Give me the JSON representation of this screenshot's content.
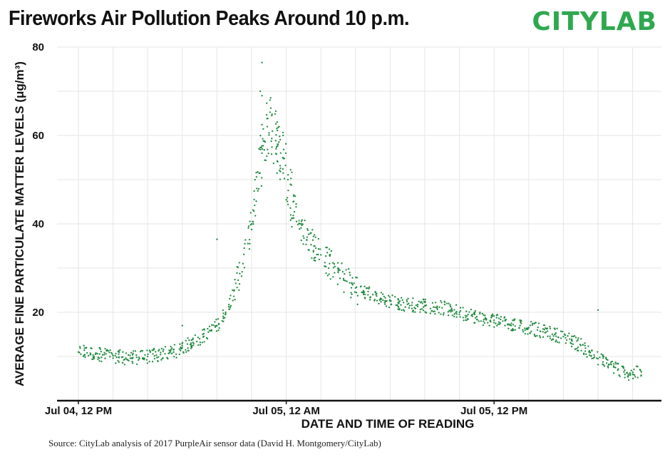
{
  "header": {
    "title": "Fireworks Air Pollution Peaks Around 10 p.m.",
    "brand": "CITYLAB"
  },
  "footer": {
    "source": "Source: CityLab analysis of 2017 PurpleAir sensor data (David H. Montgomery/CityLab)"
  },
  "colors": {
    "points": "#1f8a3c",
    "brand": "#2ea84f",
    "grid": "#e6e6e6",
    "axis": "#111111"
  },
  "chart_data": {
    "type": "scatter",
    "title": "Fireworks Air Pollution Peaks Around 10 p.m.",
    "xlabel": "DATE AND TIME OF READING",
    "ylabel": "AVERAGE FINE PARTICULATE MATTER LEVELS (μg/m³)",
    "x_units": "hours after Jul 04, 12 PM",
    "x_ticks": [
      {
        "x": 0,
        "label": "Jul 04, 12 PM"
      },
      {
        "x": 12,
        "label": "Jul 05, 12 AM"
      },
      {
        "x": 24,
        "label": "Jul 05, 12 PM"
      }
    ],
    "ylim": [
      0,
      80
    ],
    "y_ticks": [
      20,
      40,
      60,
      80
    ],
    "xlim": [
      -2,
      33
    ],
    "grid": true,
    "series": [
      {
        "name": "",
        "points": [
          [
            0.0,
            11.0
          ],
          [
            0.5,
            10.8
          ],
          [
            1.0,
            10.6
          ],
          [
            1.5,
            10.4
          ],
          [
            2.0,
            10.2
          ],
          [
            2.5,
            9.8
          ],
          [
            3.0,
            9.6
          ],
          [
            3.5,
            9.8
          ],
          [
            4.0,
            10.0
          ],
          [
            4.5,
            10.3
          ],
          [
            5.0,
            10.6
          ],
          [
            5.5,
            11.0
          ],
          [
            6.0,
            12.0
          ],
          [
            6.5,
            13.0
          ],
          [
            7.0,
            14.0
          ],
          [
            7.5,
            15.5
          ],
          [
            8.0,
            17.0
          ],
          [
            8.5,
            20.0
          ],
          [
            9.0,
            25.0
          ],
          [
            9.5,
            31.0
          ],
          [
            10.0,
            40.0
          ],
          [
            10.3,
            48.0
          ],
          [
            10.6,
            56.0
          ],
          [
            10.9,
            62.0
          ],
          [
            11.2,
            61.0
          ],
          [
            11.5,
            58.0
          ],
          [
            11.8,
            55.0
          ],
          [
            12.1,
            50.0
          ],
          [
            12.4,
            45.0
          ],
          [
            12.8,
            40.0
          ],
          [
            13.2,
            37.0
          ],
          [
            13.6,
            35.0
          ],
          [
            14.0,
            33.0
          ],
          [
            14.5,
            31.0
          ],
          [
            15.0,
            29.0
          ],
          [
            15.5,
            27.0
          ],
          [
            16.0,
            25.5
          ],
          [
            16.5,
            24.5
          ],
          [
            17.0,
            24.0
          ],
          [
            17.5,
            23.0
          ],
          [
            18.0,
            22.5
          ],
          [
            18.5,
            22.0
          ],
          [
            19.0,
            21.8
          ],
          [
            19.5,
            21.6
          ],
          [
            20.0,
            21.5
          ],
          [
            20.5,
            21.2
          ],
          [
            21.0,
            21.0
          ],
          [
            21.5,
            20.5
          ],
          [
            22.0,
            20.0
          ],
          [
            22.5,
            19.5
          ],
          [
            23.0,
            19.0
          ],
          [
            23.5,
            18.5
          ],
          [
            24.0,
            18.2
          ],
          [
            24.5,
            18.0
          ],
          [
            25.0,
            17.5
          ],
          [
            25.5,
            17.0
          ],
          [
            26.0,
            16.5
          ],
          [
            26.5,
            16.0
          ],
          [
            27.0,
            15.5
          ],
          [
            27.5,
            15.0
          ],
          [
            28.0,
            14.5
          ],
          [
            28.5,
            13.5
          ],
          [
            29.0,
            12.5
          ],
          [
            29.5,
            11.0
          ],
          [
            30.0,
            9.5
          ],
          [
            30.5,
            8.5
          ],
          [
            31.0,
            7.5
          ],
          [
            31.5,
            6.5
          ],
          [
            32.0,
            6.0
          ],
          [
            32.5,
            6.5
          ]
        ],
        "outliers": [
          [
            10.5,
            70.0
          ],
          [
            10.6,
            69.0
          ],
          [
            10.6,
            76.5
          ],
          [
            11.1,
            68.5
          ],
          [
            11.4,
            65.5
          ],
          [
            8.0,
            36.5
          ],
          [
            6.0,
            17.0
          ],
          [
            30.0,
            20.5
          ]
        ]
      }
    ]
  }
}
